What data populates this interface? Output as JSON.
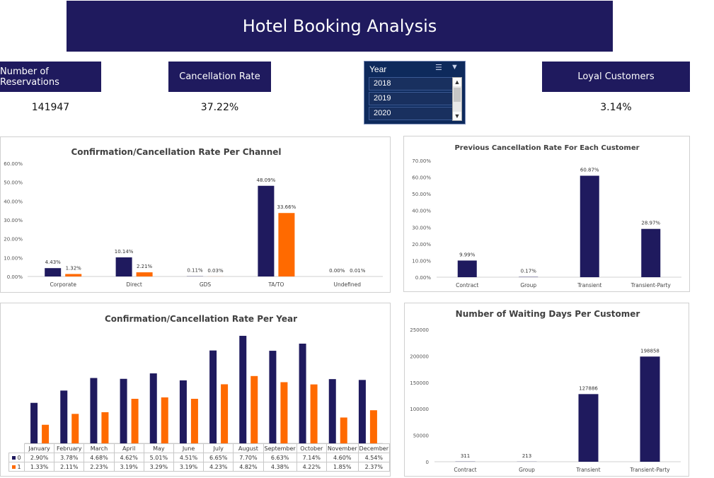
{
  "title": "Hotel Booking Analysis",
  "kpis": {
    "reservations_label": "Number of Reservations",
    "reservations_value": "141947",
    "cancellation_label": "Cancellation Rate",
    "cancellation_value": "37.22%",
    "loyal_label": "Loyal Customers",
    "loyal_value": "3.14%"
  },
  "slicer": {
    "header": "Year",
    "items": [
      "2018",
      "2019",
      "2020"
    ],
    "multi_select_icon": "multi-select-icon",
    "clear_filter_icon": "clear-filter-icon"
  },
  "colors": {
    "navy": "#1f1a5e",
    "orange": "#ff6a00",
    "slicer_bg": "#0e2a5c"
  },
  "chart_data": [
    {
      "type": "bar",
      "title": "Confirmation/Cancellation Rate Per Channel",
      "categories": [
        "Corporate",
        "Direct",
        "GDS",
        "TA/TO",
        "Undefined"
      ],
      "series": [
        {
          "values": [
            4.43,
            10.14,
            0.11,
            48.09,
            0.0
          ],
          "labels": [
            "4.43%",
            "10.14%",
            "0.11%",
            "48.09%",
            "0.00%"
          ]
        },
        {
          "values": [
            1.32,
            2.21,
            0.03,
            33.66,
            0.01
          ],
          "labels": [
            "1.32%",
            "2.21%",
            "0.03%",
            "33.66%",
            "0.01%"
          ]
        }
      ],
      "yticks": [
        "0.00%",
        "10.00%",
        "20.00%",
        "30.00%",
        "40.00%",
        "50.00%",
        "60.00%"
      ],
      "ylim": [
        0,
        60
      ]
    },
    {
      "type": "bar",
      "title": "Previous Cancellation Rate For Each Customer",
      "categories": [
        "Contract",
        "Group",
        "Transient",
        "Transient-Party"
      ],
      "values": [
        9.99,
        0.17,
        60.87,
        28.97
      ],
      "labels": [
        "9.99%",
        "0.17%",
        "60.87%",
        "28.97%"
      ],
      "yticks": [
        "0.00%",
        "10.00%",
        "20.00%",
        "30.00%",
        "40.00%",
        "50.00%",
        "60.00%",
        "70.00%"
      ],
      "ylim": [
        0,
        70
      ]
    },
    {
      "type": "bar",
      "title": "Confirmation/Cancellation Rate Per Year",
      "categories": [
        "January",
        "February",
        "March",
        "April",
        "May",
        "June",
        "July",
        "August",
        "September",
        "October",
        "November",
        "December"
      ],
      "series": [
        {
          "name": "0",
          "values": [
            2.9,
            3.78,
            4.68,
            4.62,
            5.01,
            4.51,
            6.65,
            7.7,
            6.63,
            7.14,
            4.6,
            4.54
          ],
          "labels": [
            "2.90%",
            "3.78%",
            "4.68%",
            "4.62%",
            "5.01%",
            "4.51%",
            "6.65%",
            "7.70%",
            "6.63%",
            "7.14%",
            "4.60%",
            "4.54%"
          ]
        },
        {
          "name": "1",
          "values": [
            1.33,
            2.11,
            2.23,
            3.19,
            3.29,
            3.19,
            4.23,
            4.82,
            4.38,
            4.22,
            1.85,
            2.37
          ],
          "labels": [
            "1.33%",
            "2.11%",
            "2.23%",
            "3.19%",
            "3.29%",
            "3.19%",
            "4.23%",
            "4.82%",
            "4.38%",
            "4.22%",
            "1.85%",
            "2.37%"
          ]
        }
      ],
      "ylim": [
        0,
        8
      ]
    },
    {
      "type": "bar",
      "title": "Number of Waiting Days Per Customer",
      "categories": [
        "Contract",
        "Group",
        "Transient",
        "Transient-Party"
      ],
      "values": [
        311,
        213,
        127886,
        198858
      ],
      "labels": [
        "311",
        "213",
        "127886",
        "198858"
      ],
      "yticks": [
        "0",
        "50000",
        "100000",
        "150000",
        "200000",
        "250000"
      ],
      "ylim": [
        0,
        250000
      ]
    }
  ]
}
